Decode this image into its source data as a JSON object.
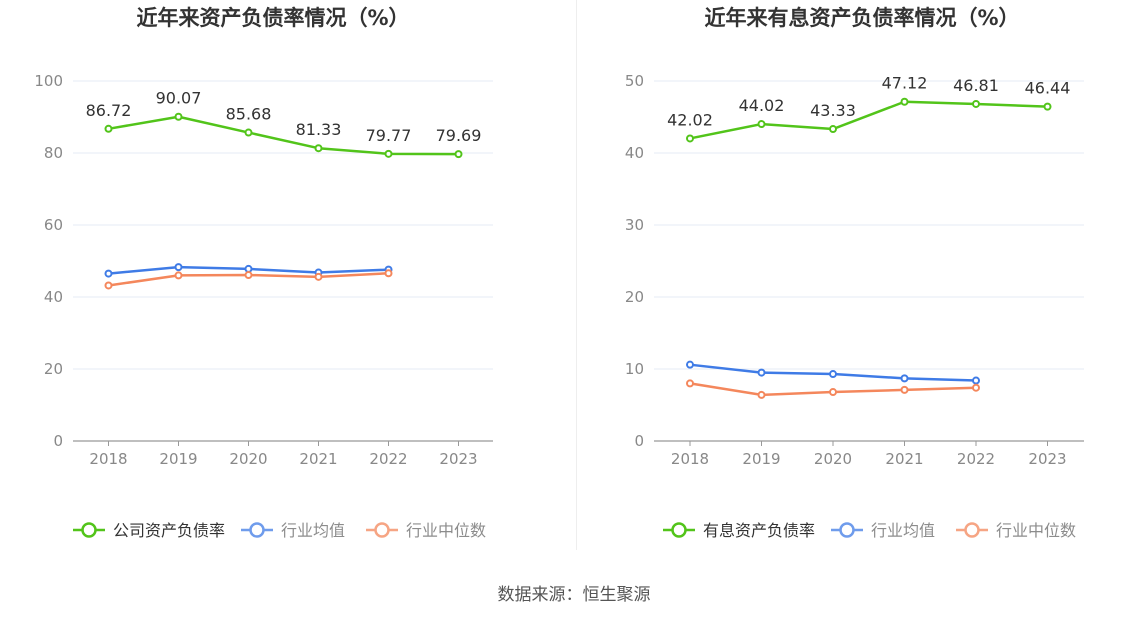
{
  "colors": {
    "main": "#52c41a",
    "avg": "#3f7be6",
    "median": "#f4875c",
    "grid": "#e6ebf5",
    "axis": "#999999",
    "tick": "#888888",
    "title": "#333333",
    "label": "#333333"
  },
  "chart_data": [
    {
      "type": "line",
      "title": "近年来资产负债率情况（%）",
      "categories": [
        "2018",
        "2019",
        "2020",
        "2021",
        "2022",
        "2023"
      ],
      "ylim": [
        0,
        100
      ],
      "yticks": [
        0,
        20,
        40,
        60,
        80,
        100
      ],
      "grid": true,
      "legend_position": "bottom",
      "series": [
        {
          "name": "公司资产负债率",
          "role": "main",
          "values": [
            86.72,
            90.07,
            85.68,
            81.33,
            79.77,
            79.69
          ],
          "labels": [
            "86.72",
            "90.07",
            "85.68",
            "81.33",
            "79.77",
            "79.69"
          ]
        },
        {
          "name": "行业均值",
          "role": "avg",
          "values": [
            46.5,
            48.3,
            47.8,
            46.8,
            47.6,
            null
          ]
        },
        {
          "name": "行业中位数",
          "role": "median",
          "values": [
            43.2,
            46.0,
            46.1,
            45.6,
            46.6,
            null
          ]
        }
      ]
    },
    {
      "type": "line",
      "title": "近年来有息资产负债率情况（%）",
      "categories": [
        "2018",
        "2019",
        "2020",
        "2021",
        "2022",
        "2023"
      ],
      "ylim": [
        0,
        50
      ],
      "yticks": [
        0,
        10,
        20,
        30,
        40,
        50
      ],
      "grid": true,
      "legend_position": "bottom",
      "series": [
        {
          "name": "有息资产负债率",
          "role": "main",
          "values": [
            42.02,
            44.02,
            43.33,
            47.12,
            46.81,
            46.44
          ],
          "labels": [
            "42.02",
            "44.02",
            "43.33",
            "47.12",
            "46.81",
            "46.44"
          ]
        },
        {
          "name": "行业均值",
          "role": "avg",
          "values": [
            10.6,
            9.5,
            9.3,
            8.7,
            8.4,
            null
          ]
        },
        {
          "name": "行业中位数",
          "role": "median",
          "values": [
            8.0,
            6.4,
            6.8,
            7.1,
            7.4,
            null
          ]
        }
      ]
    }
  ],
  "footer": {
    "source": "数据来源：恒生聚源"
  }
}
